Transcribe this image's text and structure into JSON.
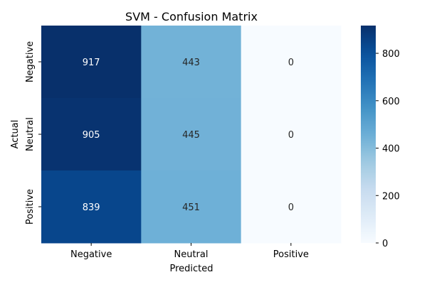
{
  "chart_data": {
    "type": "heatmap",
    "title": "SVM - Confusion Matrix",
    "xlabel": "Predicted",
    "ylabel": "Actual",
    "x_categories": [
      "Negative",
      "Neutral",
      "Positive"
    ],
    "y_categories": [
      "Negative",
      "Neutral",
      "Positive"
    ],
    "values": [
      [
        917,
        443,
        0
      ],
      [
        905,
        445,
        0
      ],
      [
        839,
        451,
        0
      ]
    ],
    "colormap": "Blues",
    "color_range": [
      0,
      917
    ],
    "colorbar_ticks": [
      "0",
      "200",
      "400",
      "600",
      "800"
    ],
    "grid": false
  }
}
